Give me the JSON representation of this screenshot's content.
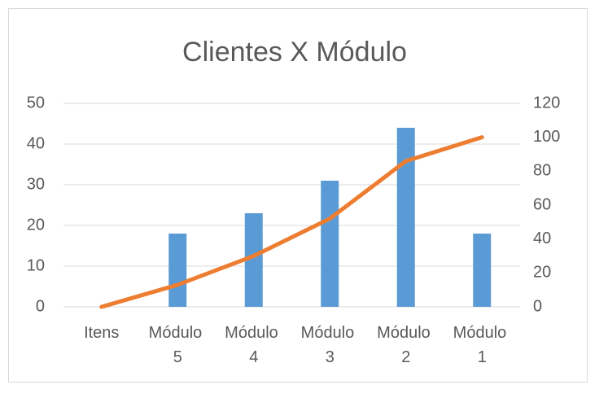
{
  "chart_data": {
    "type": "bar-line",
    "title": "Clientes X Módulo",
    "categories": [
      "Itens",
      "Módulo 5",
      "Módulo 4",
      "Módulo 3",
      "Módulo 2",
      "Módulo 1"
    ],
    "series": [
      {
        "type": "bar",
        "color": "#5b9bd5",
        "values": [
          0,
          18,
          23,
          31,
          44,
          18
        ]
      },
      {
        "type": "line",
        "axis": "y2",
        "color": "#ed7d31",
        "values": [
          0,
          13,
          30,
          52,
          86,
          100
        ]
      }
    ],
    "ylim": [
      0,
      50
    ],
    "yticks": [
      0,
      10,
      20,
      30,
      40,
      50
    ],
    "y2lim": [
      0,
      120
    ],
    "y2ticks": [
      0,
      20,
      40,
      60,
      80,
      100,
      120
    ],
    "grid": true
  }
}
